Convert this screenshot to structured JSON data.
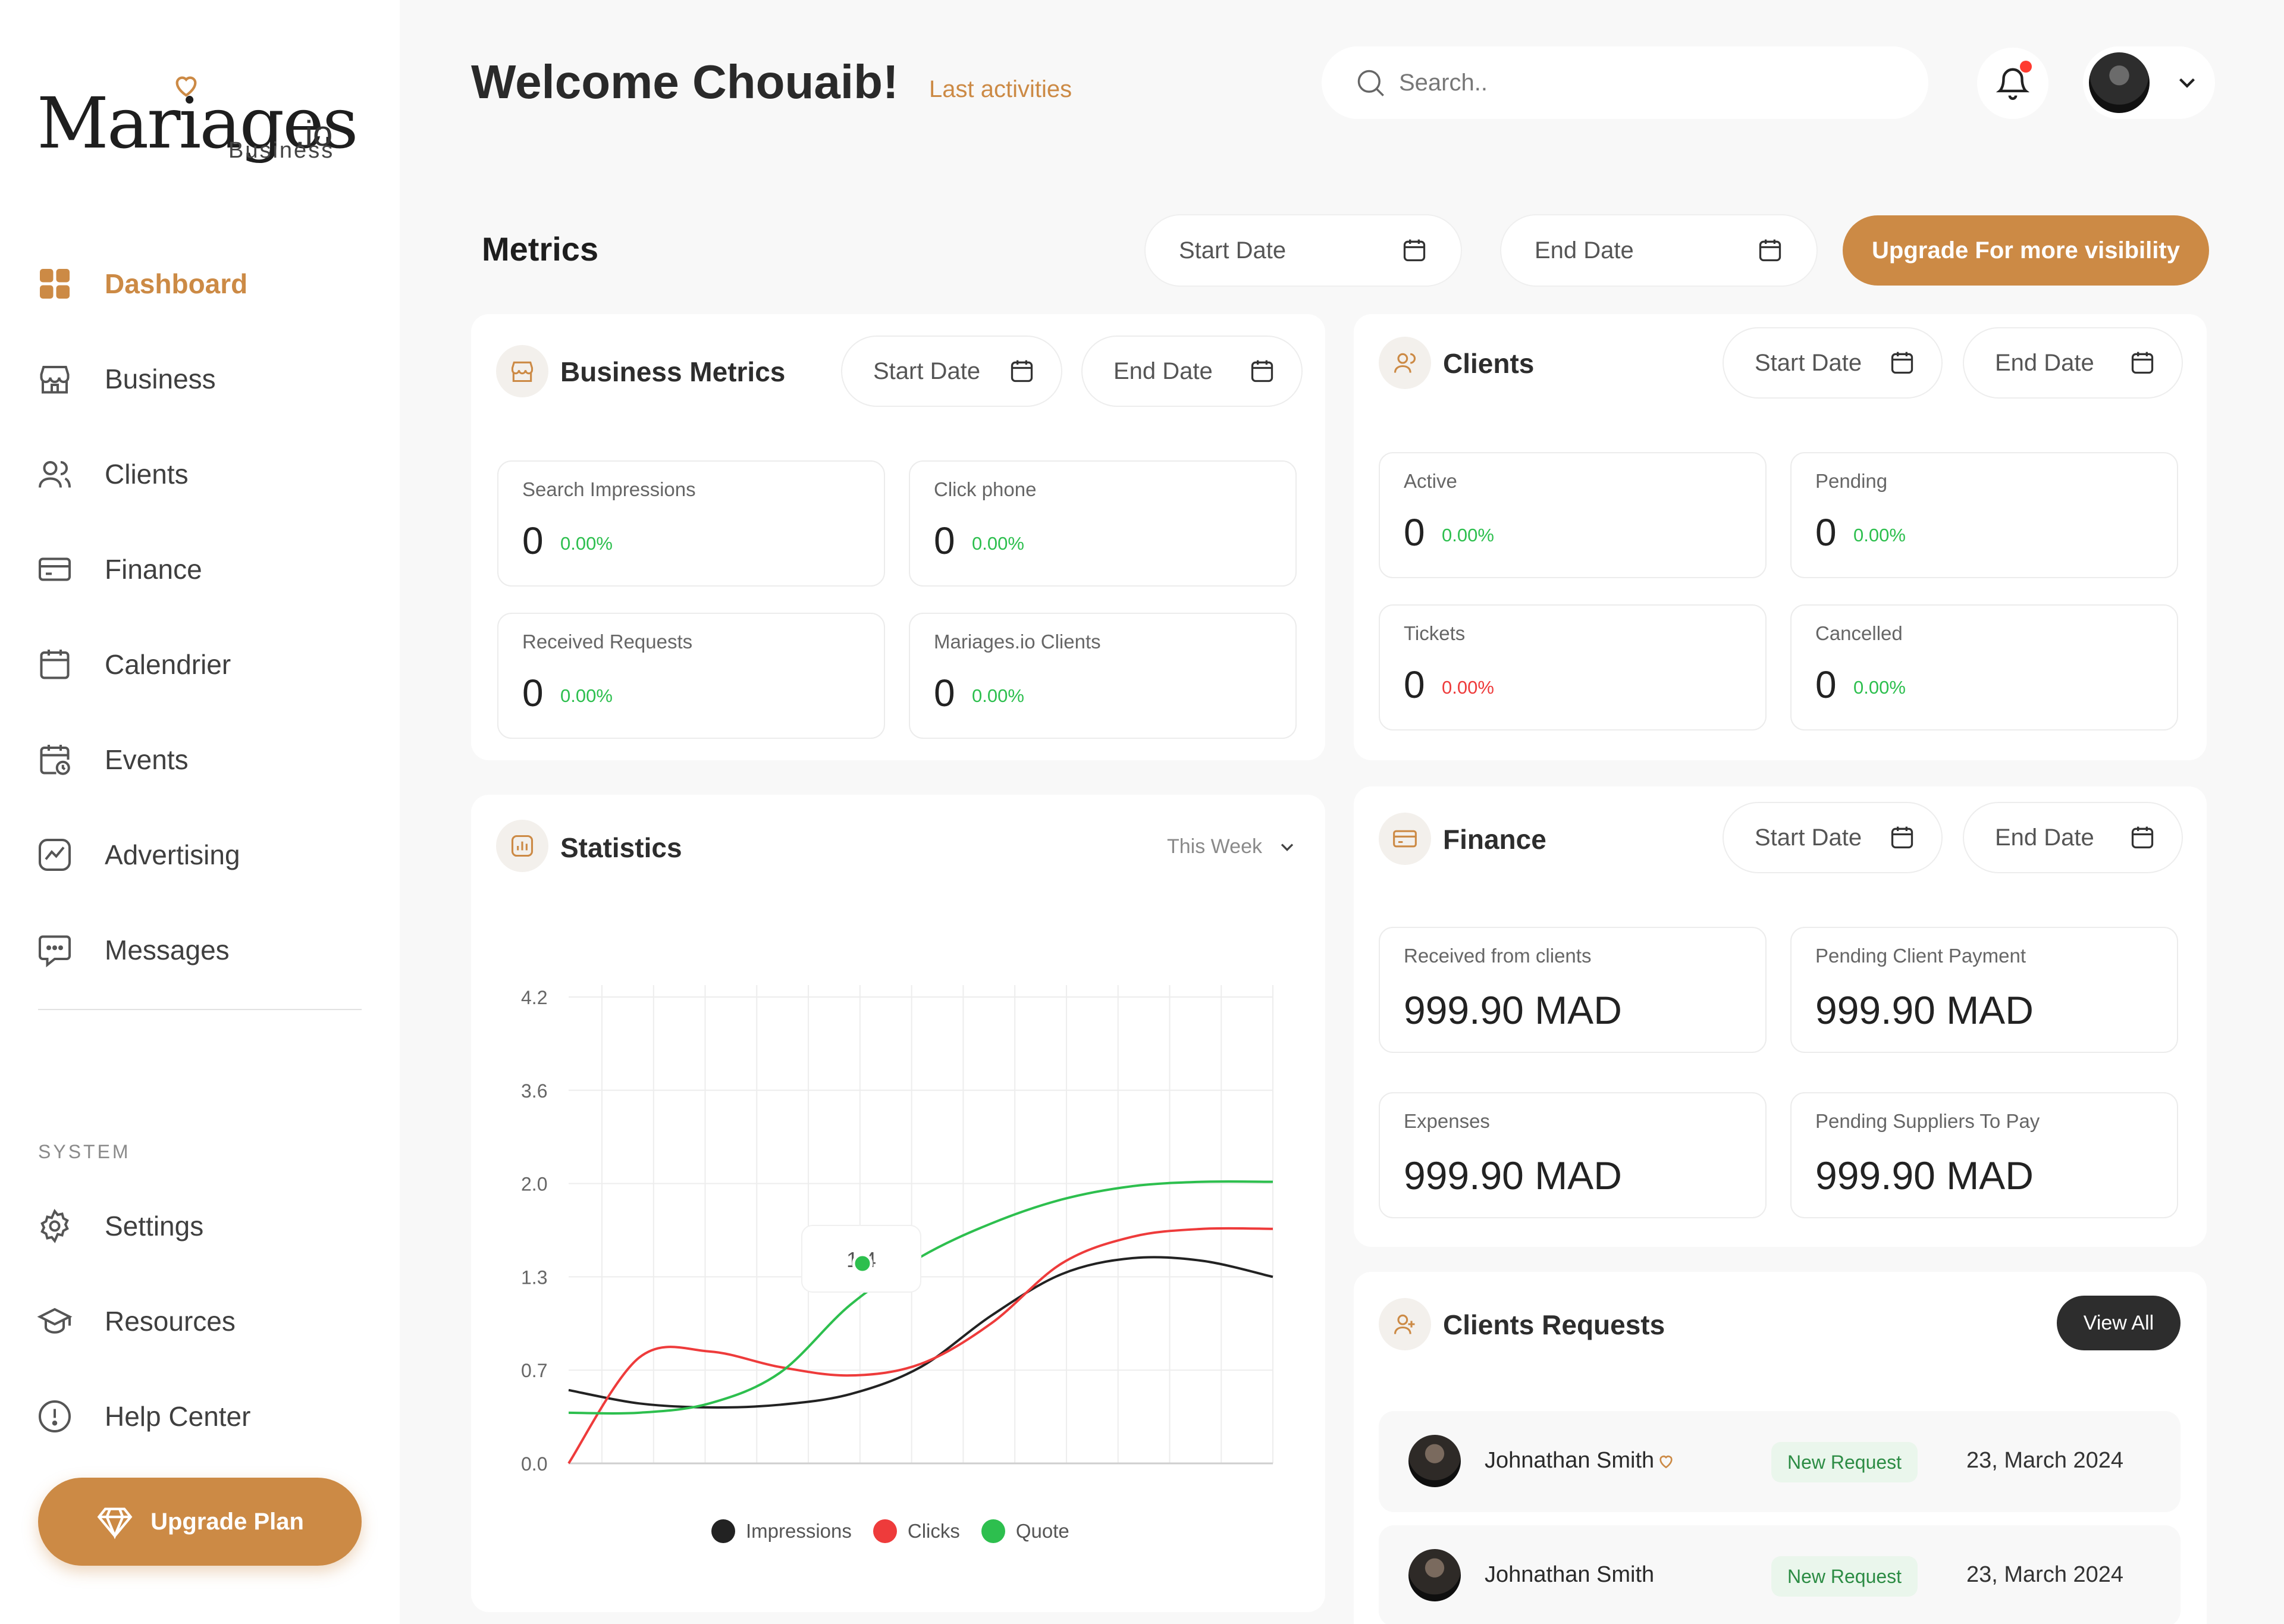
{
  "brand": {
    "name": "Mariages",
    "tld": ".io",
    "sub": "Business"
  },
  "sidebar": {
    "items": [
      {
        "label": "Dashboard",
        "icon": "grid-icon",
        "active": true
      },
      {
        "label": "Business",
        "icon": "store-icon"
      },
      {
        "label": "Clients",
        "icon": "users-icon"
      },
      {
        "label": "Finance",
        "icon": "card-icon"
      },
      {
        "label": "Calendrier",
        "icon": "calendar-icon"
      },
      {
        "label": "Events",
        "icon": "calendar-clock-icon"
      },
      {
        "label": "Advertising",
        "icon": "trend-icon"
      },
      {
        "label": "Messages",
        "icon": "chat-icon"
      }
    ],
    "system_label": "SYSTEM",
    "system_items": [
      {
        "label": "Settings",
        "icon": "gear-icon"
      },
      {
        "label": "Resources",
        "icon": "graduation-cap-icon"
      },
      {
        "label": "Help Center",
        "icon": "info-circle-icon"
      }
    ],
    "upgrade_label": "Upgrade Plan"
  },
  "header": {
    "welcome": "Welcome Chouaib!",
    "last_activities": "Last activities",
    "search_placeholder": "Search.."
  },
  "metrics": {
    "title": "Metrics",
    "start_date": "Start Date",
    "end_date": "End Date",
    "upgrade_label": "Upgrade For more visibility"
  },
  "business_metrics": {
    "title": "Business Metrics",
    "start_date": "Start Date",
    "end_date": "End Date",
    "stats": [
      {
        "label": "Search Impressions",
        "value": "0",
        "pct": "0.00%"
      },
      {
        "label": "Click phone",
        "value": "0",
        "pct": "0.00%"
      },
      {
        "label": "Received Requests",
        "value": "0",
        "pct": "0.00%"
      },
      {
        "label": "Mariages.io Clients",
        "value": "0",
        "pct": "0.00%"
      }
    ]
  },
  "clients": {
    "title": "Clients",
    "start_date": "Start Date",
    "end_date": "End Date",
    "stats": [
      {
        "label": "Active",
        "value": "0",
        "pct": "0.00%"
      },
      {
        "label": "Pending",
        "value": "0",
        "pct": "0.00%"
      },
      {
        "label": "Tickets",
        "value": "0",
        "pct": "0.00%"
      },
      {
        "label": "Cancelled",
        "value": "0",
        "pct": "0.00%"
      }
    ]
  },
  "finance": {
    "title": "Finance",
    "start_date": "Start Date",
    "end_date": "End Date",
    "stats": [
      {
        "label": "Received from clients",
        "value": "999.90 MAD"
      },
      {
        "label": "Pending Client Payment",
        "value": "999.90 MAD"
      },
      {
        "label": "Expenses",
        "value": "999.90 MAD"
      },
      {
        "label": "Pending Suppliers To Pay",
        "value": "999.90 MAD"
      }
    ]
  },
  "statistics": {
    "title": "Statistics",
    "period": "This Week",
    "tooltip": "1.4"
  },
  "chart_data": {
    "type": "line",
    "y_ticks": [
      "0.0",
      "0.7",
      "1.3",
      "2.0",
      "3.6",
      "4.2"
    ],
    "x_count": 14,
    "series": [
      {
        "name": "Impressions",
        "color": "#222222",
        "values": [
          0.55,
          0.45,
          0.42,
          0.44,
          0.52,
          0.72,
          1.05,
          1.32,
          1.44,
          1.42,
          1.3
        ]
      },
      {
        "name": "Clicks",
        "color": "#ee3b3b",
        "values": [
          0.0,
          0.78,
          0.82,
          0.72,
          0.66,
          0.74,
          1.0,
          1.4,
          1.6,
          1.66,
          1.66
        ]
      },
      {
        "name": "Quote",
        "color": "#2dbf4e",
        "values": [
          0.38,
          0.38,
          0.45,
          0.68,
          1.12,
          1.45,
          1.7,
          1.88,
          1.98,
          2.03,
          2.03
        ]
      }
    ],
    "highlight": {
      "series": "Quote",
      "value": 1.4
    }
  },
  "requests": {
    "title": "Clients Requests",
    "view_all": "View All",
    "rows": [
      {
        "name": "Johnathan Smith",
        "badge": "New Request",
        "date": "23, March 2024",
        "heart": true
      },
      {
        "name": "Johnathan Smith",
        "badge": "New Request",
        "date": "23, March 2024",
        "heart": false
      }
    ]
  },
  "colors": {
    "accent": "#cc8a45",
    "positive": "#2dbf4e",
    "negative": "#ee3b3b"
  }
}
